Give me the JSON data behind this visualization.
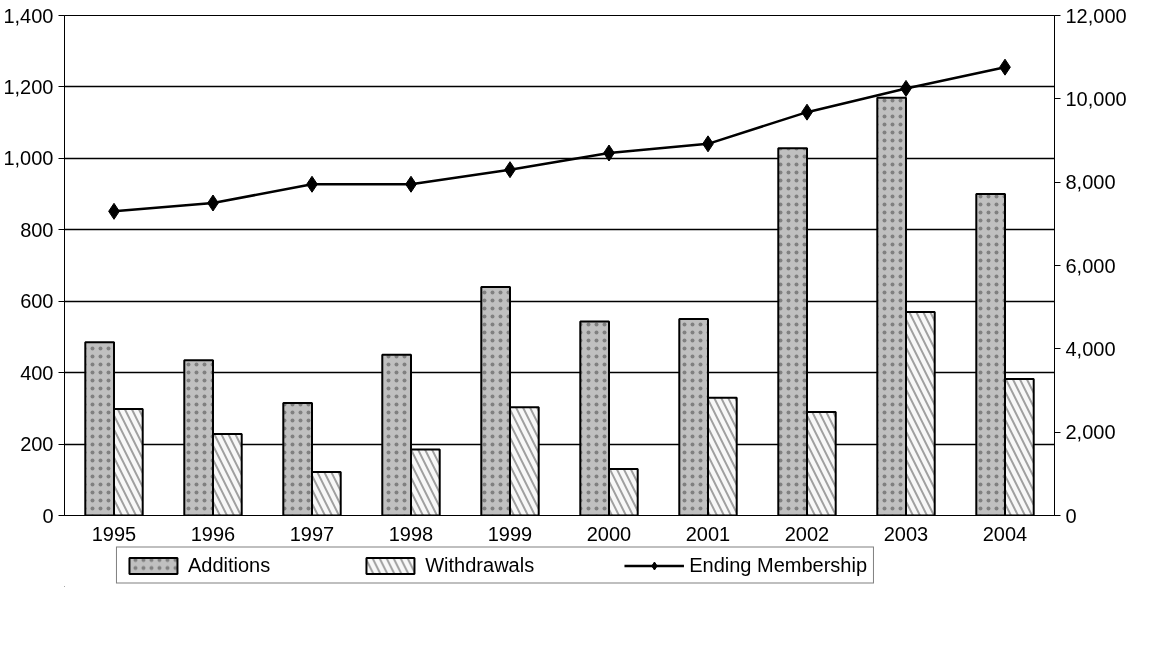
{
  "chart_data": {
    "type": "bar",
    "categories": [
      "1995",
      "1996",
      "1997",
      "1998",
      "1999",
      "2000",
      "2001",
      "2002",
      "2003",
      "2004"
    ],
    "series": [
      {
        "name": "Additions",
        "color": "#c0c0c0",
        "values": [
          485,
          435,
          315,
          450,
          640,
          543,
          550,
          1028,
          1170,
          900
        ]
      },
      {
        "name": "Withdrawals",
        "color": "#f8f8f8",
        "values": [
          298,
          228,
          122,
          185,
          303,
          130,
          330,
          290,
          570,
          382
        ]
      },
      {
        "name": "Ending Membership",
        "type": "line",
        "axis": "y2",
        "color": "#000000",
        "marker": "diamond",
        "values": [
          7300,
          7500,
          7950,
          7950,
          8300,
          8700,
          8920,
          9680,
          10250,
          10760
        ]
      }
    ],
    "ylim": [
      0,
      1400
    ],
    "yticks": [
      0,
      200,
      400,
      600,
      800,
      {
        "value": 1000,
        "label": "1,000"
      },
      {
        "value": 1200,
        "label": "1,200"
      },
      {
        "value": 1400,
        "label": "1,400"
      }
    ],
    "y2lim": [
      0,
      12000
    ],
    "y2ticks": [
      0,
      {
        "value": 2000,
        "label": "2,000"
      },
      {
        "value": 4000,
        "label": "4,000"
      },
      {
        "value": 6000,
        "label": "6,000"
      },
      {
        "value": 8000,
        "label": "8,000"
      },
      {
        "value": 10000,
        "label": "10,000"
      },
      {
        "value": 12000,
        "label": "12,000"
      }
    ],
    "grid": "y",
    "legend": "bottom"
  }
}
